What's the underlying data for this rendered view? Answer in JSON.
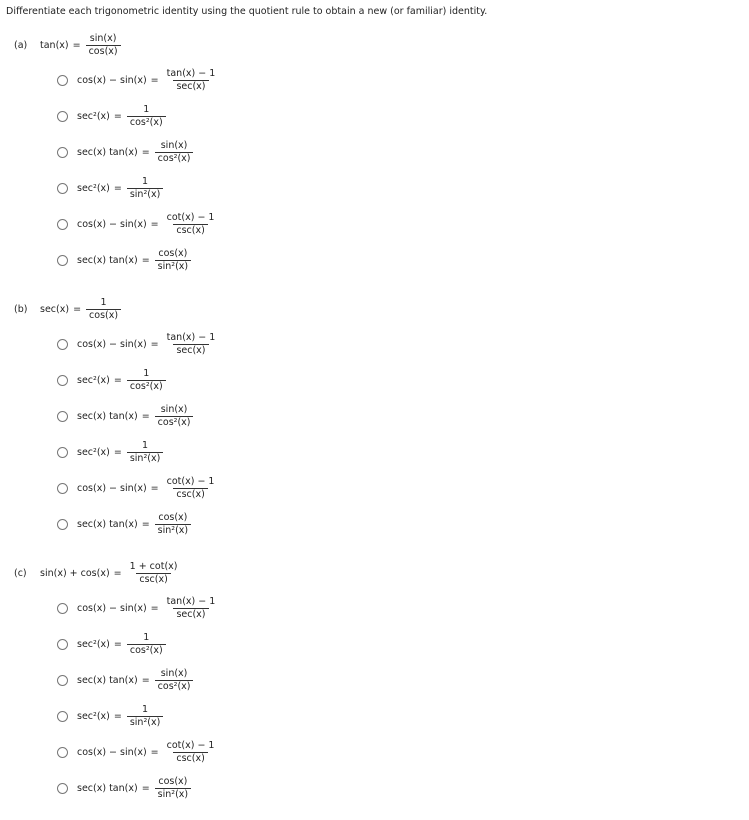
{
  "instructions": "Differentiate each trigonometric identity using the quotient rule to obtain a new (or familiar) identity.",
  "parts": [
    {
      "label": "(a)",
      "lhs": "tan(x)",
      "num": "sin(x)",
      "den": "cos(x)"
    },
    {
      "label": "(b)",
      "lhs": "sec(x)",
      "num": "1",
      "den": "cos(x)"
    },
    {
      "label": "(c)",
      "lhs": "sin(x) + cos(x)",
      "num": "1 + cot(x)",
      "den": "csc(x)"
    }
  ],
  "options": [
    {
      "lhs": "cos(x) − sin(x)",
      "num": "tan(x) − 1",
      "den": "sec(x)"
    },
    {
      "lhs": "sec²(x)",
      "num": "1",
      "den": "cos²(x)"
    },
    {
      "lhs": "sec(x) tan(x)",
      "num": "sin(x)",
      "den": "cos²(x)"
    },
    {
      "lhs": "sec²(x)",
      "num": "1",
      "den": "sin²(x)"
    },
    {
      "lhs": "cos(x) − sin(x)",
      "num": "cot(x) − 1",
      "den": "csc(x)"
    },
    {
      "lhs": "sec(x) tan(x)",
      "num": "cos(x)",
      "den": "sin²(x)"
    }
  ],
  "equals": "="
}
